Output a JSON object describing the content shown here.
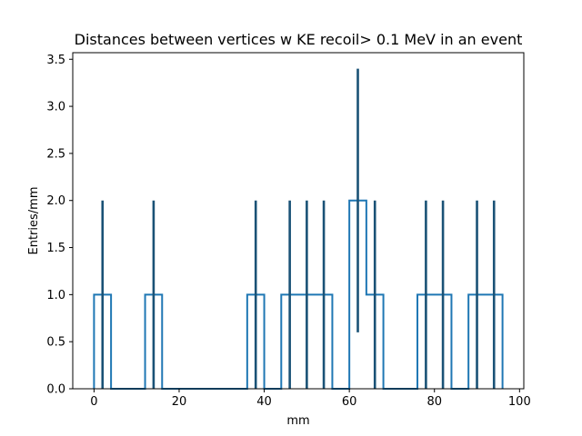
{
  "chart_data": {
    "type": "histogram",
    "title": "Distances between vertices w  KE recoil> 0.1 MeV in an event",
    "xlabel": "mm",
    "ylabel": "Entries/mm",
    "xlim": [
      -5,
      101
    ],
    "ylim": [
      0,
      3.57
    ],
    "xticks": [
      0,
      20,
      40,
      60,
      80,
      100
    ],
    "yticks": [
      0.0,
      0.5,
      1.0,
      1.5,
      2.0,
      2.5,
      3.0,
      3.5
    ],
    "grid": false,
    "legend": "none",
    "bin_width": 4,
    "bin_edges": [
      0,
      4,
      8,
      12,
      16,
      20,
      24,
      28,
      32,
      36,
      40,
      44,
      48,
      52,
      56,
      60,
      64,
      68,
      72,
      76,
      80,
      84,
      88,
      92,
      96
    ],
    "values": [
      1,
      0,
      0,
      1,
      0,
      0,
      0,
      0,
      0,
      1,
      0,
      1,
      1,
      1,
      0,
      2,
      1,
      0,
      0,
      1,
      1,
      0,
      1,
      1
    ],
    "error_bars": [
      {
        "x": 2,
        "low": 0,
        "high": 2
      },
      {
        "x": 14,
        "low": 0,
        "high": 2
      },
      {
        "x": 38,
        "low": 0,
        "high": 2
      },
      {
        "x": 46,
        "low": 0,
        "high": 2
      },
      {
        "x": 50,
        "low": 0,
        "high": 2
      },
      {
        "x": 54,
        "low": 0,
        "high": 2
      },
      {
        "x": 62,
        "low": 0.6,
        "high": 3.4
      },
      {
        "x": 66,
        "low": 0,
        "high": 2
      },
      {
        "x": 78,
        "low": 0,
        "high": 2
      },
      {
        "x": 82,
        "low": 0,
        "high": 2
      },
      {
        "x": 90,
        "low": 0,
        "high": 2
      },
      {
        "x": 94,
        "low": 0,
        "high": 2
      }
    ],
    "colors": {
      "histogram": "#1f77b4",
      "error_bars": "#1a5276"
    }
  }
}
